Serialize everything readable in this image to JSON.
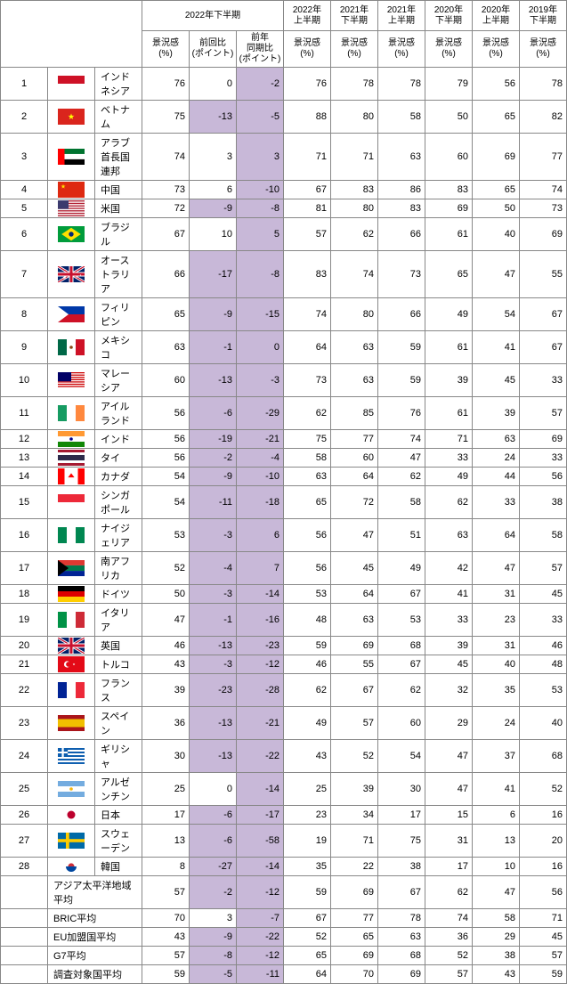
{
  "headers": {
    "main_period": "2022年下半期",
    "periods": [
      "2022年\n上半期",
      "2021年\n下半期",
      "2021年\n上半期",
      "2020年\n下半期",
      "2020年\n上半期",
      "2019年\n下半期"
    ],
    "sub_main": [
      "景況感\n(%)",
      "前回比\n(ポイント)",
      "前年\n同期比\n(ポイント)"
    ],
    "sub_small": "景況感\n(%)"
  },
  "rows": [
    {
      "rank": 1,
      "flag": "id",
      "country": "インドネシア",
      "v": [
        76,
        0,
        -2,
        76,
        78,
        78,
        79,
        56,
        78
      ],
      "hilite": [
        2
      ]
    },
    {
      "rank": 2,
      "flag": "vn",
      "country": "ベトナム",
      "v": [
        75,
        -13,
        -5,
        88,
        80,
        58,
        50,
        65,
        82
      ],
      "hilite": [
        1,
        2
      ]
    },
    {
      "rank": 3,
      "flag": "ae",
      "country": "アラブ首長国連邦",
      "v": [
        74,
        3,
        3,
        71,
        71,
        63,
        60,
        69,
        77
      ],
      "hilite": [
        2
      ]
    },
    {
      "rank": 4,
      "flag": "cn",
      "country": "中国",
      "v": [
        73,
        6,
        -10,
        67,
        83,
        86,
        83,
        65,
        74
      ],
      "hilite": [
        2
      ]
    },
    {
      "rank": 5,
      "flag": "us",
      "country": "米国",
      "v": [
        72,
        -9,
        -8,
        81,
        80,
        83,
        69,
        50,
        73
      ],
      "hilite": [
        1,
        2
      ]
    },
    {
      "rank": 6,
      "flag": "br",
      "country": "ブラジル",
      "v": [
        67,
        10,
        5,
        57,
        62,
        66,
        61,
        40,
        69
      ],
      "hilite": [
        2
      ]
    },
    {
      "rank": 7,
      "flag": "au",
      "country": "オーストラリア",
      "v": [
        66,
        -17,
        -8,
        83,
        74,
        73,
        65,
        47,
        55
      ],
      "hilite": [
        1,
        2
      ]
    },
    {
      "rank": 8,
      "flag": "ph",
      "country": "フィリピン",
      "v": [
        65,
        -9,
        -15,
        74,
        80,
        66,
        49,
        54,
        67
      ],
      "hilite": [
        1,
        2
      ]
    },
    {
      "rank": 9,
      "flag": "mx",
      "country": "メキシコ",
      "v": [
        63,
        -1,
        0,
        64,
        63,
        59,
        61,
        41,
        67
      ],
      "hilite": [
        1,
        2
      ]
    },
    {
      "rank": 10,
      "flag": "my",
      "country": "マレーシア",
      "v": [
        60,
        -13,
        -3,
        73,
        63,
        59,
        39,
        45,
        33
      ],
      "hilite": [
        1,
        2
      ]
    },
    {
      "rank": 11,
      "flag": "ie",
      "country": "アイルランド",
      "v": [
        56,
        -6,
        -29,
        62,
        85,
        76,
        61,
        39,
        57
      ],
      "hilite": [
        1,
        2
      ]
    },
    {
      "rank": 12,
      "flag": "in",
      "country": "インド",
      "v": [
        56,
        -19,
        -21,
        75,
        77,
        74,
        71,
        63,
        69
      ],
      "hilite": [
        1,
        2
      ]
    },
    {
      "rank": 13,
      "flag": "th",
      "country": "タイ",
      "v": [
        56,
        -2,
        -4,
        58,
        60,
        47,
        33,
        24,
        33
      ],
      "hilite": [
        1,
        2
      ]
    },
    {
      "rank": 14,
      "flag": "ca",
      "country": "カナダ",
      "v": [
        54,
        -9,
        -10,
        63,
        64,
        62,
        49,
        44,
        56
      ],
      "hilite": [
        1,
        2
      ]
    },
    {
      "rank": 15,
      "flag": "sg",
      "country": "シンガポール",
      "v": [
        54,
        -11,
        -18,
        65,
        72,
        58,
        62,
        33,
        38
      ],
      "hilite": [
        1,
        2
      ]
    },
    {
      "rank": 16,
      "flag": "ng",
      "country": "ナイジェリア",
      "v": [
        53,
        -3,
        6,
        56,
        47,
        51,
        63,
        64,
        58
      ],
      "hilite": [
        1,
        2
      ]
    },
    {
      "rank": 17,
      "flag": "za",
      "country": "南アフリカ",
      "v": [
        52,
        -4,
        7,
        56,
        45,
        49,
        42,
        47,
        57
      ],
      "hilite": [
        1,
        2
      ]
    },
    {
      "rank": 18,
      "flag": "de",
      "country": "ドイツ",
      "v": [
        50,
        -3,
        -14,
        53,
        64,
        67,
        41,
        31,
        45
      ],
      "hilite": [
        1,
        2
      ]
    },
    {
      "rank": 19,
      "flag": "it",
      "country": "イタリア",
      "v": [
        47,
        -1,
        -16,
        48,
        63,
        53,
        33,
        23,
        33
      ],
      "hilite": [
        1,
        2
      ]
    },
    {
      "rank": 20,
      "flag": "gb",
      "country": "英国",
      "v": [
        46,
        -13,
        -23,
        59,
        69,
        68,
        39,
        31,
        46
      ],
      "hilite": [
        1,
        2
      ]
    },
    {
      "rank": 21,
      "flag": "tr",
      "country": "トルコ",
      "v": [
        43,
        -3,
        -12,
        46,
        55,
        67,
        45,
        40,
        48
      ],
      "hilite": [
        1,
        2
      ]
    },
    {
      "rank": 22,
      "flag": "fr",
      "country": "フランス",
      "v": [
        39,
        -23,
        -28,
        62,
        67,
        62,
        32,
        35,
        53
      ],
      "hilite": [
        1,
        2
      ]
    },
    {
      "rank": 23,
      "flag": "es",
      "country": "スペイン",
      "v": [
        36,
        -13,
        -21,
        49,
        57,
        60,
        29,
        24,
        40
      ],
      "hilite": [
        1,
        2
      ]
    },
    {
      "rank": 24,
      "flag": "gr",
      "country": "ギリシャ",
      "v": [
        30,
        -13,
        -22,
        43,
        52,
        54,
        47,
        37,
        68
      ],
      "hilite": [
        1,
        2
      ]
    },
    {
      "rank": 25,
      "flag": "ar",
      "country": "アルゼンチン",
      "v": [
        25,
        0,
        -14,
        25,
        39,
        30,
        47,
        41,
        52
      ],
      "hilite": [
        2
      ]
    },
    {
      "rank": 26,
      "flag": "jp",
      "country": "日本",
      "v": [
        17,
        -6,
        -17,
        23,
        34,
        17,
        15,
        6,
        16
      ],
      "hilite": [
        1,
        2
      ]
    },
    {
      "rank": 27,
      "flag": "se",
      "country": "スウェーデン",
      "v": [
        13,
        -6,
        -58,
        19,
        71,
        75,
        31,
        13,
        20
      ],
      "hilite": [
        1,
        2
      ]
    },
    {
      "rank": 28,
      "flag": "kr",
      "country": "韓国",
      "v": [
        8,
        -27,
        -14,
        35,
        22,
        38,
        17,
        10,
        16
      ],
      "hilite": [
        1,
        2
      ]
    }
  ],
  "summary": [
    {
      "label": "アジア太平洋地域平均",
      "v": [
        57,
        -2,
        -12,
        59,
        69,
        67,
        62,
        47,
        56
      ],
      "hilite": [
        1,
        2
      ]
    },
    {
      "label": "BRIC平均",
      "v": [
        70,
        3,
        -7,
        67,
        77,
        78,
        74,
        58,
        71
      ],
      "hilite": [
        2
      ]
    },
    {
      "label": "EU加盟国平均",
      "v": [
        43,
        -9,
        -22,
        52,
        65,
        63,
        36,
        29,
        45
      ],
      "hilite": [
        1,
        2
      ]
    },
    {
      "label": "G7平均",
      "v": [
        57,
        -8,
        -12,
        65,
        69,
        68,
        52,
        38,
        57
      ],
      "hilite": [
        1,
        2
      ]
    },
    {
      "label": "調査対象国平均",
      "v": [
        59,
        -5,
        -11,
        64,
        70,
        69,
        57,
        43,
        59
      ],
      "hilite": [
        1,
        2
      ]
    }
  ],
  "flags": {
    "id": [
      "#fff",
      [
        [
          "r",
          0,
          0,
          1,
          0.5,
          "#ce1126"
        ]
      ]
    ],
    "vn": [
      "#da251d",
      [
        [
          "s",
          0.5,
          0.5,
          0.2,
          "#ff0"
        ]
      ]
    ],
    "ae": [
      "#fff",
      [
        [
          "r",
          0,
          0,
          1,
          0.33,
          "#00732f"
        ],
        [
          "r",
          0,
          0.66,
          1,
          0.34,
          "#000"
        ],
        [
          "r",
          0,
          0,
          0.25,
          1,
          "#f00"
        ]
      ]
    ],
    "cn": [
      "#de2910",
      [
        [
          "s",
          0.2,
          0.3,
          0.15,
          "#ffde00"
        ]
      ]
    ],
    "us": [
      "#fff",
      [
        [
          "r",
          0,
          0,
          1,
          0.077,
          "#b22234"
        ],
        [
          "r",
          0,
          0.154,
          1,
          0.077,
          "#b22234"
        ],
        [
          "r",
          0,
          0.308,
          1,
          0.077,
          "#b22234"
        ],
        [
          "r",
          0,
          0.462,
          1,
          0.077,
          "#b22234"
        ],
        [
          "r",
          0,
          0.616,
          1,
          0.077,
          "#b22234"
        ],
        [
          "r",
          0,
          0.77,
          1,
          0.077,
          "#b22234"
        ],
        [
          "r",
          0,
          0.924,
          1,
          0.077,
          "#b22234"
        ],
        [
          "r",
          0,
          0,
          0.4,
          0.538,
          "#3c3b6e"
        ]
      ]
    ],
    "br": [
      "#009c3b",
      [
        [
          "d",
          0.5,
          0.5,
          0.4,
          "#ffdf00"
        ],
        [
          "c",
          0.5,
          0.5,
          0.15,
          "#002776"
        ]
      ]
    ],
    "au": [
      "#012169",
      [
        [
          "uj"
        ],
        [
          "s",
          0.75,
          0.3,
          0.05,
          "#fff"
        ],
        [
          "s",
          0.85,
          0.55,
          0.05,
          "#fff"
        ],
        [
          "s",
          0.7,
          0.7,
          0.05,
          "#fff"
        ],
        [
          "s",
          0.25,
          0.7,
          0.12,
          "#fff"
        ]
      ]
    ],
    "ph": [
      "#fff",
      [
        [
          "r",
          0,
          0,
          1,
          0.5,
          "#0038a8"
        ],
        [
          "r",
          0,
          0.5,
          1,
          0.5,
          "#ce1126"
        ],
        [
          "t",
          0,
          0,
          0.4,
          "#fff"
        ]
      ]
    ],
    "mx": [
      "#fff",
      [
        [
          "r",
          0,
          0,
          0.333,
          1,
          "#006847"
        ],
        [
          "r",
          0.667,
          0,
          0.333,
          1,
          "#ce1126"
        ],
        [
          "c",
          0.5,
          0.5,
          0.1,
          "#8b4513"
        ]
      ]
    ],
    "my": [
      "#fff",
      [
        [
          "r",
          0,
          0,
          1,
          0.071,
          "#cc0001"
        ],
        [
          "r",
          0,
          0.143,
          1,
          0.071,
          "#cc0001"
        ],
        [
          "r",
          0,
          0.286,
          1,
          0.071,
          "#cc0001"
        ],
        [
          "r",
          0,
          0.429,
          1,
          0.071,
          "#cc0001"
        ],
        [
          "r",
          0,
          0.571,
          1,
          0.071,
          "#cc0001"
        ],
        [
          "r",
          0,
          0.714,
          1,
          0.071,
          "#cc0001"
        ],
        [
          "r",
          0,
          0.857,
          1,
          0.071,
          "#cc0001"
        ],
        [
          "r",
          0,
          0,
          0.5,
          0.571,
          "#010066"
        ]
      ]
    ],
    "ie": [
      "#fff",
      [
        [
          "r",
          0,
          0,
          0.333,
          1,
          "#169b62"
        ],
        [
          "r",
          0.667,
          0,
          0.333,
          1,
          "#ff883e"
        ]
      ]
    ],
    "in": [
      "#fff",
      [
        [
          "r",
          0,
          0,
          1,
          0.333,
          "#f93"
        ],
        [
          "r",
          0,
          0.667,
          1,
          0.333,
          "#128807"
        ],
        [
          "c",
          0.5,
          0.5,
          0.1,
          "#008"
        ]
      ]
    ],
    "th": [
      "#fff",
      [
        [
          "r",
          0,
          0,
          1,
          0.167,
          "#a51931"
        ],
        [
          "r",
          0,
          0.833,
          1,
          0.167,
          "#a51931"
        ],
        [
          "r",
          0,
          0.333,
          1,
          0.333,
          "#2d2a4a"
        ]
      ]
    ],
    "ca": [
      "#fff",
      [
        [
          "r",
          0,
          0,
          0.25,
          1,
          "#f00"
        ],
        [
          "r",
          0.75,
          0,
          0.25,
          1,
          "#f00"
        ],
        [
          "ml",
          0.5,
          0.5,
          0.2,
          "#f00"
        ]
      ]
    ],
    "sg": [
      "#fff",
      [
        [
          "r",
          0,
          0,
          1,
          0.5,
          "#ed2939"
        ]
      ]
    ],
    "ng": [
      "#fff",
      [
        [
          "r",
          0,
          0,
          0.333,
          1,
          "#008751"
        ],
        [
          "r",
          0.667,
          0,
          0.333,
          1,
          "#008751"
        ]
      ]
    ],
    "za": [
      "#fff",
      [
        [
          "r",
          0,
          0,
          1,
          0.33,
          "#de3831"
        ],
        [
          "r",
          0,
          0.67,
          1,
          0.33,
          "#002395"
        ],
        [
          "r",
          0,
          0.33,
          1,
          0.34,
          "#007a4d"
        ],
        [
          "t",
          0,
          0,
          0.4,
          "#000"
        ]
      ]
    ],
    "de": [
      "#ffce00",
      [
        [
          "r",
          0,
          0,
          1,
          0.333,
          "#000"
        ],
        [
          "r",
          0,
          0.333,
          1,
          0.333,
          "#d00"
        ]
      ]
    ],
    "it": [
      "#fff",
      [
        [
          "r",
          0,
          0,
          0.333,
          1,
          "#009246"
        ],
        [
          "r",
          0.667,
          0,
          0.333,
          1,
          "#ce2b37"
        ]
      ]
    ],
    "gb": [
      "#012169",
      [
        [
          "uj"
        ]
      ]
    ],
    "tr": [
      "#e30a17",
      [
        [
          "c",
          0.35,
          0.5,
          0.2,
          "#fff"
        ],
        [
          "c",
          0.4,
          0.5,
          0.16,
          "#e30a17"
        ],
        [
          "s",
          0.6,
          0.5,
          0.08,
          "#fff"
        ]
      ]
    ],
    "fr": [
      "#fff",
      [
        [
          "r",
          0,
          0,
          0.333,
          1,
          "#002395"
        ],
        [
          "r",
          0.667,
          0,
          0.333,
          1,
          "#ed2939"
        ]
      ]
    ],
    "es": [
      "#aa151b",
      [
        [
          "r",
          0,
          0.25,
          1,
          0.5,
          "#f1bf00"
        ]
      ]
    ],
    "gr": [
      "#fff",
      [
        [
          "r",
          0,
          0,
          1,
          0.111,
          "#0d5eaf"
        ],
        [
          "r",
          0,
          0.222,
          1,
          0.111,
          "#0d5eaf"
        ],
        [
          "r",
          0,
          0.444,
          1,
          0.111,
          "#0d5eaf"
        ],
        [
          "r",
          0,
          0.666,
          1,
          0.111,
          "#0d5eaf"
        ],
        [
          "r",
          0,
          0.888,
          1,
          0.111,
          "#0d5eaf"
        ],
        [
          "r",
          0,
          0,
          0.37,
          0.555,
          "#0d5eaf"
        ],
        [
          "r",
          0,
          0.222,
          0.37,
          0.111,
          "#fff"
        ],
        [
          "r",
          0.148,
          0,
          0.074,
          0.555,
          "#fff"
        ]
      ]
    ],
    "ar": [
      "#fff",
      [
        [
          "r",
          0,
          0,
          1,
          0.333,
          "#74acdf"
        ],
        [
          "r",
          0,
          0.667,
          1,
          0.333,
          "#74acdf"
        ],
        [
          "c",
          0.5,
          0.5,
          0.1,
          "#f6b40e"
        ]
      ]
    ],
    "jp": [
      "#fff",
      [
        [
          "c",
          0.5,
          0.5,
          0.25,
          "#bc002d"
        ]
      ]
    ],
    "se": [
      "#006aa7",
      [
        [
          "r",
          0,
          0.4,
          1,
          0.2,
          "#fecc00"
        ],
        [
          "r",
          0.3,
          0,
          0.125,
          1,
          "#fecc00"
        ]
      ]
    ],
    "kr": [
      "#fff",
      [
        [
          "c",
          0.5,
          0.5,
          0.2,
          "#cd2e3a"
        ],
        [
          "hc",
          0.5,
          0.5,
          0.2,
          "#0047a0"
        ]
      ]
    ]
  },
  "colors": {
    "highlight": "#c8b8d8",
    "border": "#888888"
  }
}
